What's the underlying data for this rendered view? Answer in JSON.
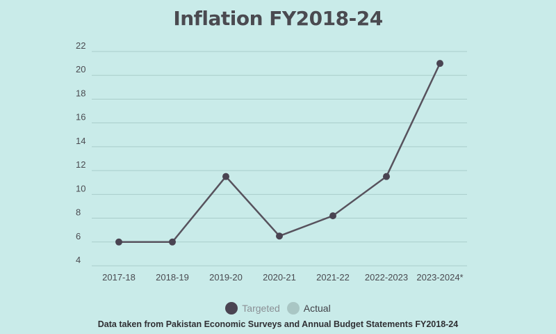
{
  "colors": {
    "background": "#c9ebe9",
    "line": "#57525d",
    "targeted_dot": "#4a4452",
    "actual_dot": "#a9c6c4",
    "grid": "#a9cdca"
  },
  "legend": [
    {
      "label": "Targeted",
      "color": "#4a4452"
    },
    {
      "label": "Actual",
      "color": "#a9c6c4"
    }
  ],
  "source_note": "Data taken from Pakistan Economic Surveys and Annual Budget Statements FY2018-24",
  "chart_data": {
    "type": "line",
    "title": "Inflation FY2018-24",
    "xlabel": "",
    "ylabel": "",
    "categories": [
      "2017-18",
      "2018-19",
      "2019-20",
      "2020-21",
      "2021-22",
      "2022-2023",
      "2023-2024*"
    ],
    "series": [
      {
        "name": "Targeted",
        "values": [
          6,
          6,
          11.5,
          6.5,
          8.2,
          11.5,
          21
        ]
      }
    ],
    "ylim": [
      4,
      22
    ],
    "yticks": [
      4,
      6,
      8,
      10,
      12,
      14,
      16,
      18,
      20,
      22
    ],
    "grid": true,
    "legend_position": "bottom"
  }
}
